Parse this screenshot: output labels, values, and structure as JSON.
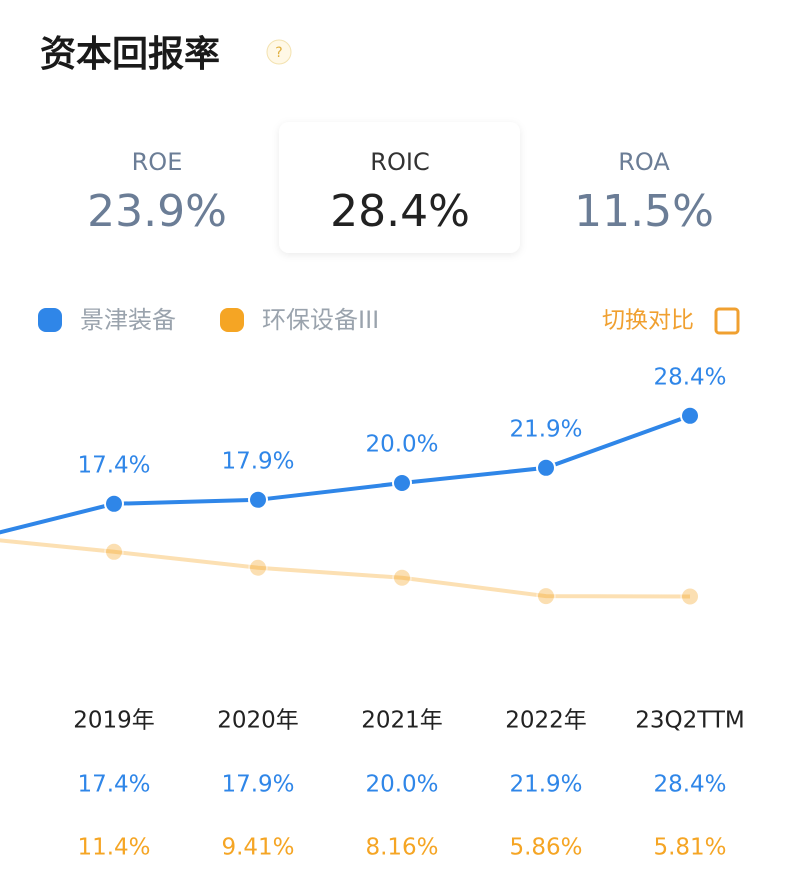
{
  "header": {
    "title": "资本回报率",
    "help": "?"
  },
  "metrics": [
    {
      "label": "ROE",
      "value": "23.9%"
    },
    {
      "label": "ROIC",
      "value": "28.4%"
    },
    {
      "label": "ROA",
      "value": "11.5%"
    }
  ],
  "compare": "切换对比",
  "chart_data": {
    "type": "line",
    "categories": [
      null,
      "2019年",
      "2020年",
      "2021年",
      "2022年",
      "23Q2TTM"
    ],
    "series": [
      {
        "name": "景津装备",
        "color": "#2f86e8",
        "values": [
          12.9,
          17.4,
          17.9,
          20.0,
          21.9,
          28.4
        ],
        "value_labels": [
          null,
          "17.4%",
          "17.9%",
          "20.0%",
          "21.9%",
          "28.4%"
        ]
      },
      {
        "name": "环保设备III",
        "color": "#f5a524",
        "values": [
          13.2,
          11.4,
          9.41,
          8.16,
          5.86,
          5.81
        ],
        "value_labels": [
          null,
          "11.4%",
          "9.41%",
          "8.16%",
          "5.86%",
          "5.81%"
        ]
      }
    ],
    "ylim": [
      0,
      30
    ]
  }
}
